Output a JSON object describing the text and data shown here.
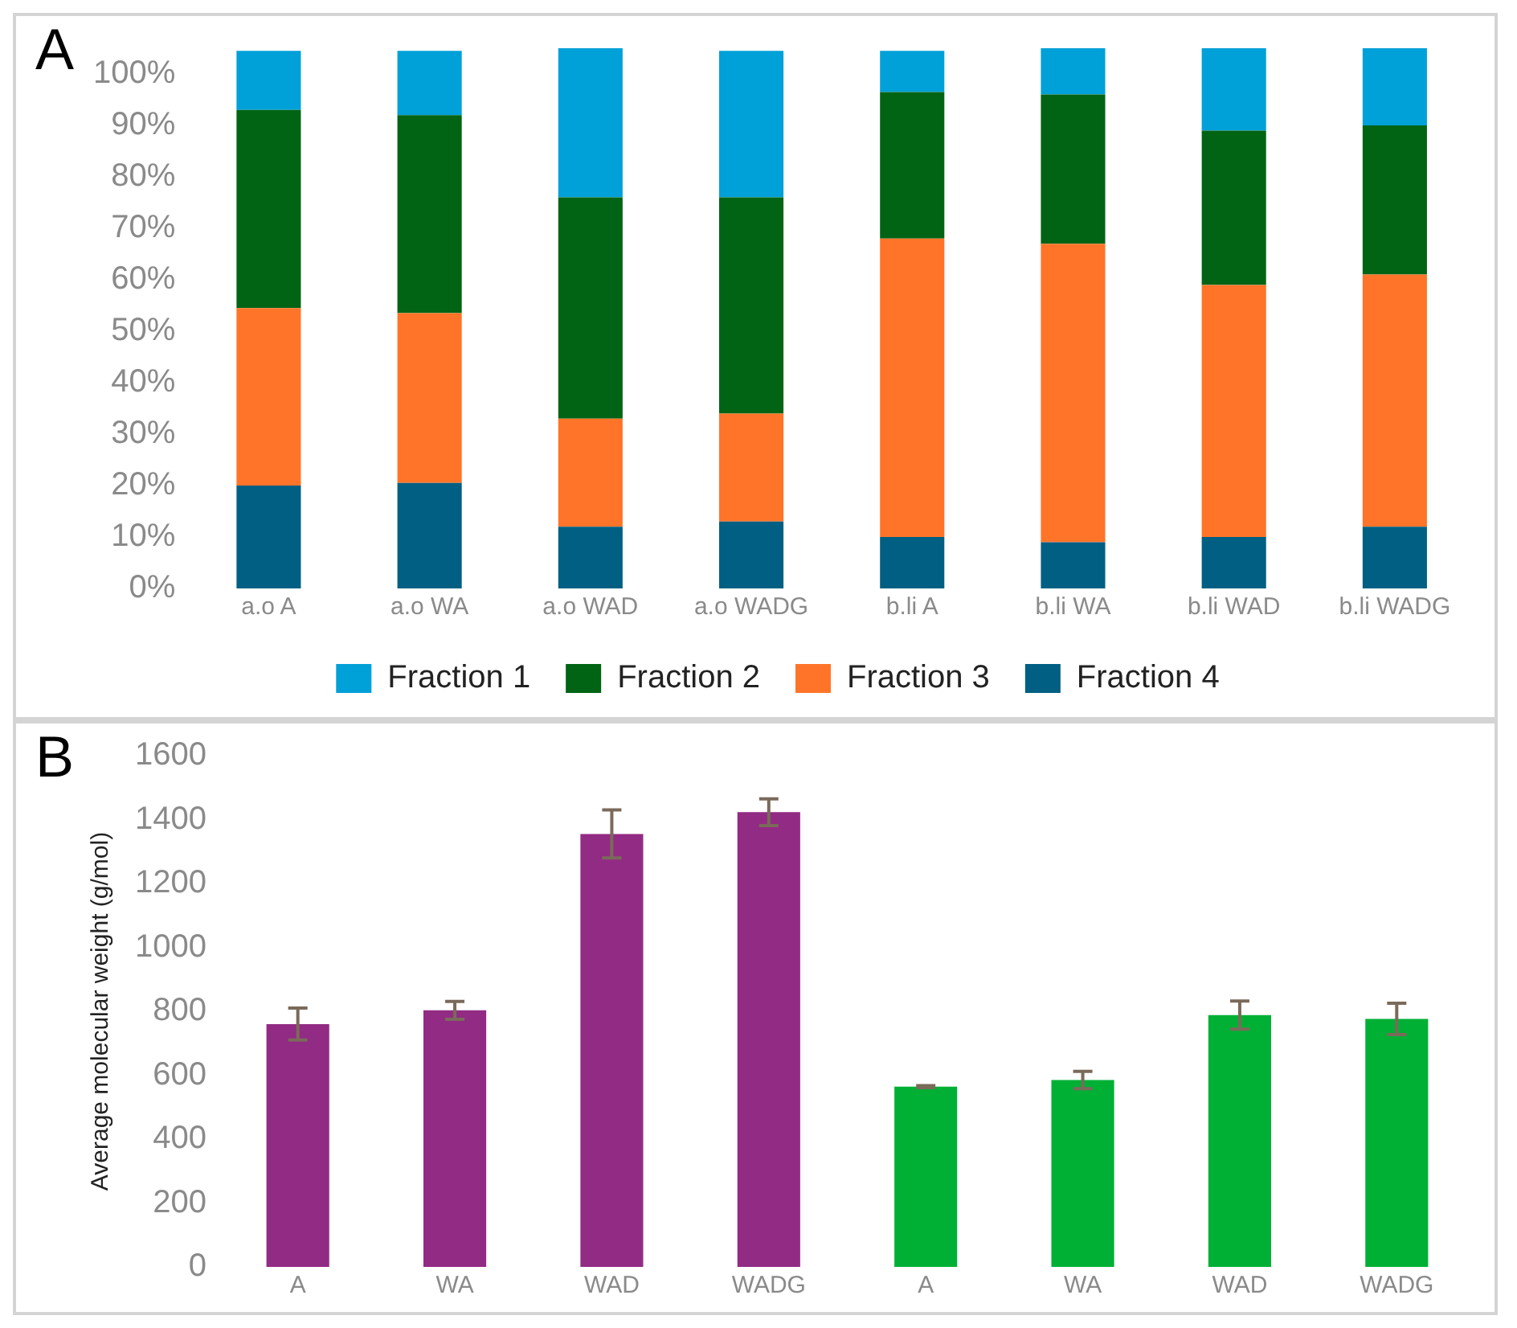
{
  "chart_data": [
    {
      "type": "bar",
      "stacked": true,
      "annotations": [
        "A"
      ],
      "categories": [
        "a.o A",
        "a.o WA",
        "a.o WAD",
        "a.o WADG",
        "b.li A",
        "b.li WA",
        "b.li WAD",
        "b.li WADG"
      ],
      "series": [
        {
          "name": "Fraction 4",
          "color": "#005f82",
          "values": [
            20,
            20.5,
            12,
            13,
            10,
            9,
            10,
            12
          ]
        },
        {
          "name": "Fraction 3",
          "color": "#ff7428",
          "values": [
            34.5,
            33,
            21,
            21,
            58,
            58,
            49,
            49
          ]
        },
        {
          "name": "Fraction 2",
          "color": "#006414",
          "values": [
            38.5,
            38.5,
            43,
            42,
            28.5,
            29,
            30,
            29
          ]
        },
        {
          "name": "Fraction 1",
          "color": "#00a0d8",
          "values": [
            11.5,
            12.5,
            29,
            28.5,
            8,
            9,
            16,
            15
          ]
        }
      ],
      "ylim": [
        0,
        105
      ],
      "yticks": [
        {
          "value": 0,
          "label": "0%"
        },
        {
          "value": 10,
          "label": "10%"
        },
        {
          "value": 20,
          "label": "20%"
        },
        {
          "value": 30,
          "label": "30%"
        },
        {
          "value": 40,
          "label": "40%"
        },
        {
          "value": 50,
          "label": "50%"
        },
        {
          "value": 60,
          "label": "60%"
        },
        {
          "value": 70,
          "label": "70%"
        },
        {
          "value": 80,
          "label": "80%"
        },
        {
          "value": 90,
          "label": "90%"
        },
        {
          "value": 100,
          "label": "100%"
        }
      ],
      "grid": false,
      "legend": "bottom"
    },
    {
      "type": "bar",
      "annotations": [
        "B"
      ],
      "ylabel": "Average molecular weight (g/mol)",
      "categories": [
        "A",
        "WA",
        "WAD",
        "WADG",
        "A",
        "WA",
        "WAD",
        "WADG"
      ],
      "values": [
        760,
        803,
        1355,
        1423,
        564,
        585,
        788,
        776
      ],
      "colors": [
        "#922b84",
        "#922b84",
        "#922b84",
        "#922b84",
        "#00b035",
        "#00b035",
        "#00b035",
        "#00b035"
      ],
      "errors": [
        50,
        28,
        75,
        42,
        3,
        27,
        44,
        49
      ],
      "ylim": [
        0,
        1600
      ],
      "yticks": [
        0,
        200,
        400,
        600,
        800,
        1000,
        1200,
        1400,
        1600
      ],
      "grid": false,
      "legend": false
    }
  ]
}
